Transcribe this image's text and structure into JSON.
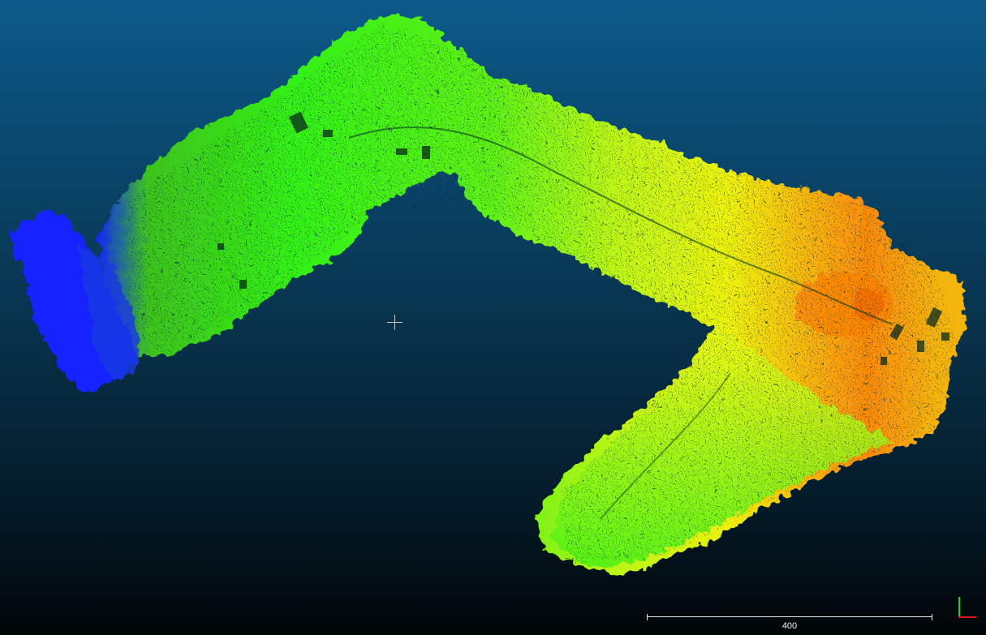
{
  "viewer": {
    "background_top": "#0c5a8a",
    "background_bottom": "#010507",
    "colormap": [
      "#1020ff",
      "#2cff10",
      "#ffff10",
      "#ff5a00"
    ]
  },
  "scale_bar": {
    "label": "400"
  },
  "axes": {
    "x_color": "#e01515",
    "y_color": "#18d118"
  },
  "icons": {
    "crosshair": "crosshair-icon",
    "axes": "axis-trihedron-icon"
  }
}
